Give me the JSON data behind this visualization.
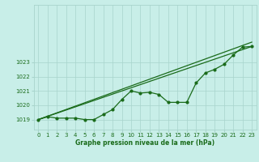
{
  "hours": [
    0,
    1,
    2,
    3,
    4,
    5,
    6,
    7,
    8,
    9,
    10,
    11,
    12,
    13,
    14,
    15,
    16,
    17,
    18,
    19,
    20,
    21,
    22,
    23
  ],
  "pressure_main": [
    1019.0,
    1019.2,
    1019.1,
    1019.1,
    1019.1,
    1019.0,
    1019.0,
    1019.35,
    1019.7,
    1020.4,
    1021.0,
    1020.85,
    1020.9,
    1020.75,
    1020.2,
    1020.2,
    1020.2,
    1021.55,
    1022.25,
    1022.5,
    1022.85,
    1023.5,
    1024.05,
    1024.1
  ],
  "trend1_x": [
    0,
    23
  ],
  "trend1_y": [
    1019.0,
    1024.4
  ],
  "trend2_x": [
    0,
    23
  ],
  "trend2_y": [
    1019.0,
    1024.1
  ],
  "ylim": [
    1018.3,
    1027.0
  ],
  "xlim": [
    -0.5,
    23.5
  ],
  "yticks": [
    1019,
    1020,
    1021,
    1022,
    1023
  ],
  "xticks": [
    0,
    1,
    2,
    3,
    4,
    5,
    6,
    7,
    8,
    9,
    10,
    11,
    12,
    13,
    14,
    15,
    16,
    17,
    18,
    19,
    20,
    21,
    22,
    23
  ],
  "line_color": "#1a6b1a",
  "bg_color": "#c8eee8",
  "grid_color": "#a8d4cc",
  "xlabel": "Graphe pression niveau de la mer (hPa)",
  "figsize": [
    3.2,
    2.0
  ],
  "dpi": 100
}
